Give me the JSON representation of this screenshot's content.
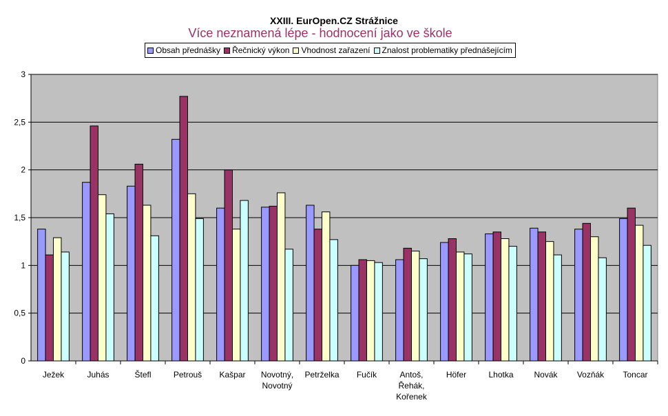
{
  "chart_data": {
    "type": "bar",
    "title": "XXIII. EurOpen.CZ Strážnice",
    "subtitle": "Více neznamená lépe - hodnocení jako ve škole",
    "xlabel": "",
    "ylabel": "",
    "ylim": [
      0,
      3
    ],
    "yticks": [
      "0",
      "0,5",
      "1",
      "1,5",
      "2",
      "2,5",
      "3"
    ],
    "grid": true,
    "legend_position": "top",
    "plot_background": "#C0C0C0",
    "categories": [
      [
        "Ježek"
      ],
      [
        "Juhás"
      ],
      [
        "Štefl"
      ],
      [
        "Petrouš"
      ],
      [
        "Kašpar"
      ],
      [
        "Novotný,",
        "Novotný"
      ],
      [
        "Petrželka"
      ],
      [
        "Fučík"
      ],
      [
        "Antoš,",
        "Řehák,",
        "Kořenek"
      ],
      [
        "Höfer"
      ],
      [
        "Lhotka"
      ],
      [
        "Novák"
      ],
      [
        "Vozňák"
      ],
      [
        "Toncar"
      ]
    ],
    "series": [
      {
        "name": "Obsah přednášky",
        "color": "#9999FF",
        "values": [
          1.38,
          1.87,
          1.83,
          2.32,
          1.6,
          1.61,
          1.63,
          1.0,
          1.06,
          1.24,
          1.33,
          1.39,
          1.38,
          1.49
        ]
      },
      {
        "name": "Řečnický výkon",
        "color": "#993366",
        "values": [
          1.11,
          2.46,
          2.06,
          2.77,
          2.0,
          1.62,
          1.38,
          1.06,
          1.18,
          1.28,
          1.35,
          1.35,
          1.44,
          1.6
        ]
      },
      {
        "name": "Vhodnost zařazení",
        "color": "#FFFFCC",
        "values": [
          1.29,
          1.74,
          1.63,
          1.75,
          1.38,
          1.76,
          1.56,
          1.05,
          1.15,
          1.14,
          1.28,
          1.25,
          1.3,
          1.42
        ]
      },
      {
        "name": "Znalost problematiky přednášejícím",
        "color": "#CCFFFF",
        "values": [
          1.14,
          1.54,
          1.31,
          1.49,
          1.68,
          1.17,
          1.27,
          1.03,
          1.07,
          1.12,
          1.2,
          1.11,
          1.08,
          1.21
        ]
      }
    ]
  }
}
